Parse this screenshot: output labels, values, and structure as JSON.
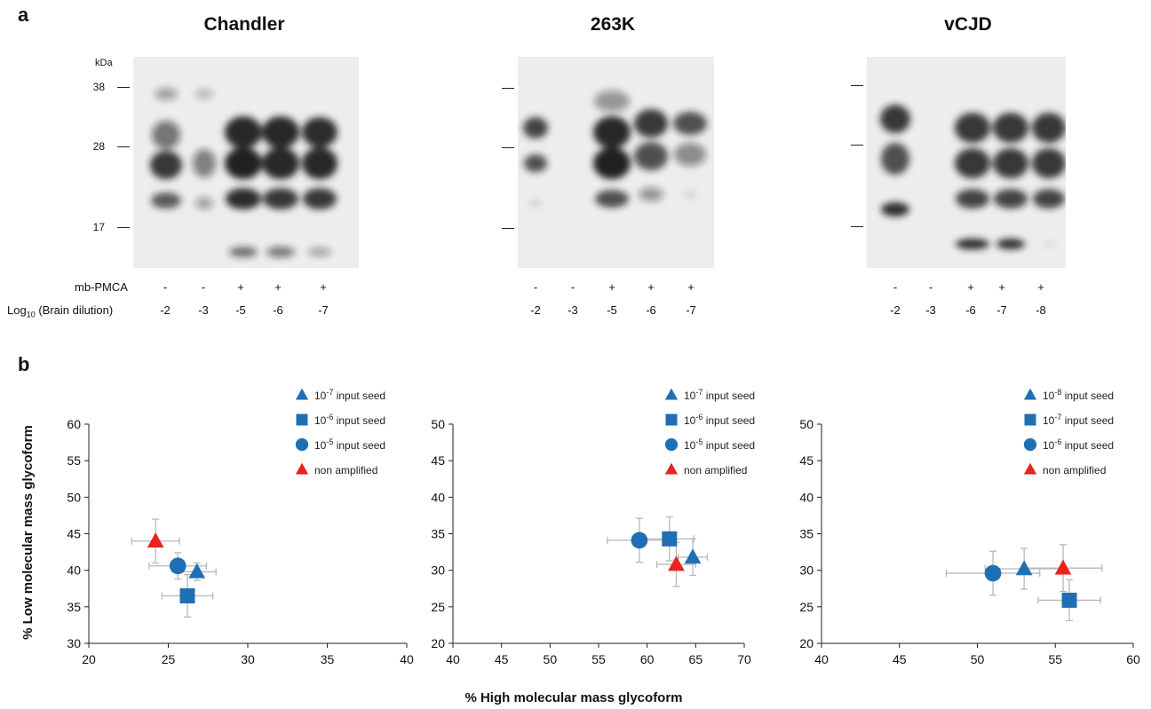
{
  "panel_a": {
    "letter": "a",
    "kda_label": "kDa",
    "row_labels": {
      "pmca": "mb-PMCA",
      "dilution_prefix": "Log",
      "dilution_sub": "10",
      "dilution_suffix": " (Brain dilution)"
    },
    "blots": [
      {
        "title": "Chandler",
        "markers": [
          "38",
          "28",
          "17"
        ],
        "pmca": [
          "-",
          "-",
          "+",
          "+",
          "+"
        ],
        "dilutions": [
          "-2",
          "-3",
          "-5",
          "-6",
          "-7"
        ]
      },
      {
        "title": "263K",
        "markers": [
          "",
          "",
          ""
        ],
        "pmca": [
          "-",
          "-",
          "+",
          "+",
          "+"
        ],
        "dilutions": [
          "-2",
          "-3",
          "-5",
          "-6",
          "-7"
        ]
      },
      {
        "title": "vCJD",
        "markers": [
          "",
          "",
          ""
        ],
        "pmca": [
          "-",
          "-",
          "+",
          "+",
          "+"
        ],
        "dilutions": [
          "-2",
          "-3",
          "-6",
          "-7",
          "-8"
        ]
      }
    ]
  },
  "panel_b": {
    "letter": "b",
    "ylabel": "% Low molecular mass glycoform",
    "xlabel": "% High molecular mass glycoform"
  },
  "colors": {
    "amplified": "#1f6fb5",
    "non_amplified": "#e8241d",
    "error_bar": "#b8b8b8"
  },
  "chart_data": [
    {
      "type": "scatter",
      "xlim": [
        20,
        40
      ],
      "ylim": [
        30,
        60
      ],
      "xticks": [
        20,
        25,
        30,
        35,
        40
      ],
      "yticks": [
        30,
        35,
        40,
        45,
        50,
        55,
        60
      ],
      "legend_position": "top-right",
      "series": [
        {
          "name": "10-7 input seed",
          "legend_base": "10",
          "legend_exp": "-7",
          "legend_text": " input seed",
          "marker": "triangle",
          "color": "#1f6fb5",
          "x": 26.8,
          "y": 39.8,
          "xerr": 1.2,
          "yerr": 1.2
        },
        {
          "name": "10-6 input seed",
          "legend_base": "10",
          "legend_exp": "-6",
          "legend_text": " input seed",
          "marker": "square",
          "color": "#1f6fb5",
          "x": 26.2,
          "y": 36.5,
          "xerr": 1.6,
          "yerr": 2.9
        },
        {
          "name": "10-5 input seed",
          "legend_base": "10",
          "legend_exp": "-5",
          "legend_text": " input seed",
          "marker": "circle",
          "color": "#1f6fb5",
          "x": 25.6,
          "y": 40.6,
          "xerr": 1.8,
          "yerr": 1.8
        },
        {
          "name": "non amplified",
          "legend_base": "",
          "legend_exp": "",
          "legend_text": "non amplified",
          "marker": "triangle",
          "color": "#e8241d",
          "x": 24.2,
          "y": 44.0,
          "xerr": 1.5,
          "yerr": 3.0
        }
      ]
    },
    {
      "type": "scatter",
      "xlim": [
        40,
        70
      ],
      "ylim": [
        20,
        50
      ],
      "xticks": [
        40,
        45,
        50,
        55,
        60,
        65,
        70
      ],
      "yticks": [
        20,
        25,
        30,
        35,
        40,
        45,
        50
      ],
      "legend_position": "top-right",
      "series": [
        {
          "name": "10-7 input seed",
          "legend_base": "10",
          "legend_exp": "-7",
          "legend_text": " input seed",
          "marker": "triangle",
          "color": "#1f6fb5",
          "x": 64.7,
          "y": 31.8,
          "xerr": 1.5,
          "yerr": 2.5
        },
        {
          "name": "10-6 input seed",
          "legend_base": "10",
          "legend_exp": "-6",
          "legend_text": " input seed",
          "marker": "square",
          "color": "#1f6fb5",
          "x": 62.3,
          "y": 34.3,
          "xerr": 2.5,
          "yerr": 3.0
        },
        {
          "name": "10-5 input seed",
          "legend_base": "10",
          "legend_exp": "-5",
          "legend_text": " input seed",
          "marker": "circle",
          "color": "#1f6fb5",
          "x": 59.2,
          "y": 34.1,
          "xerr": 3.3,
          "yerr": 3.0
        },
        {
          "name": "non amplified",
          "legend_base": "",
          "legend_exp": "",
          "legend_text": "non amplified",
          "marker": "triangle",
          "color": "#e8241d",
          "x": 63.0,
          "y": 30.8,
          "xerr": 2.0,
          "yerr": 3.0
        }
      ]
    },
    {
      "type": "scatter",
      "xlim": [
        40,
        60
      ],
      "ylim": [
        20,
        50
      ],
      "xticks": [
        40,
        45,
        50,
        55,
        60
      ],
      "yticks": [
        20,
        25,
        30,
        35,
        40,
        45,
        50
      ],
      "legend_position": "top-right",
      "series": [
        {
          "name": "10-8 input seed",
          "legend_base": "10",
          "legend_exp": "-8",
          "legend_text": " input seed",
          "marker": "triangle",
          "color": "#1f6fb5",
          "x": 53.0,
          "y": 30.2,
          "xerr": 2.5,
          "yerr": 2.8
        },
        {
          "name": "10-7 input seed",
          "legend_base": "10",
          "legend_exp": "-7",
          "legend_text": " input seed",
          "marker": "square",
          "color": "#1f6fb5",
          "x": 55.9,
          "y": 25.9,
          "xerr": 2.0,
          "yerr": 2.8
        },
        {
          "name": "10-6 input seed",
          "legend_base": "10",
          "legend_exp": "-6",
          "legend_text": " input seed",
          "marker": "circle",
          "color": "#1f6fb5",
          "x": 51.0,
          "y": 29.6,
          "xerr": 3.0,
          "yerr": 3.0
        },
        {
          "name": "non amplified",
          "legend_base": "",
          "legend_exp": "",
          "legend_text": "non amplified",
          "marker": "triangle",
          "color": "#e8241d",
          "x": 55.5,
          "y": 30.3,
          "xerr": 2.5,
          "yerr": 3.2
        }
      ]
    }
  ]
}
